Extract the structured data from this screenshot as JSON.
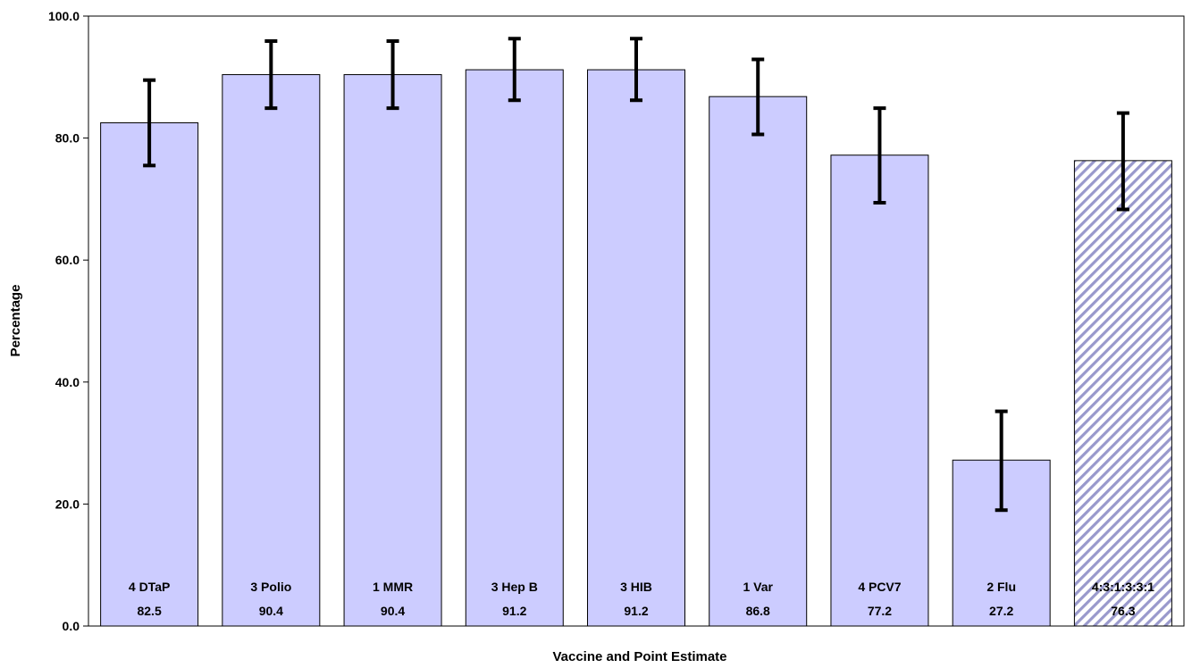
{
  "chart_data": {
    "type": "bar",
    "title": "",
    "xlabel": "Vaccine and Point Estimate",
    "ylabel": "Percentage",
    "ylim": [
      0,
      100
    ],
    "yticks": [
      "0.0",
      "20.0",
      "40.0",
      "60.0",
      "80.0",
      "100.0"
    ],
    "grid": false,
    "categories": [
      "4 DTaP",
      "3 Polio",
      "1 MMR",
      "3 Hep B",
      "3 HIB",
      "1 Var",
      "4 PCV7",
      "2 Flu",
      "4:3:1:3:3:1"
    ],
    "value_labels": [
      "82.5",
      "90.4",
      "90.4",
      "91.2",
      "91.2",
      "86.8",
      "77.2",
      "27.2",
      "76.3"
    ],
    "values": [
      82.5,
      90.4,
      90.4,
      91.2,
      91.2,
      86.8,
      77.2,
      27.2,
      76.3
    ],
    "error_low": [
      75.5,
      84.9,
      84.9,
      86.2,
      86.2,
      80.6,
      69.4,
      19.0,
      68.3
    ],
    "error_high": [
      89.5,
      95.9,
      95.9,
      96.3,
      96.3,
      92.9,
      84.9,
      35.2,
      84.1
    ],
    "bar_color": "#ccccff",
    "hatched_last_bar": true,
    "hatch_color": "#9999cc"
  }
}
